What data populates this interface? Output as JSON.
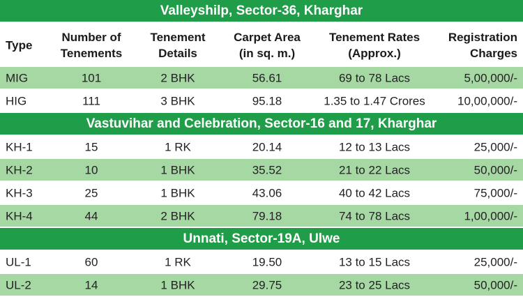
{
  "headers": [
    [
      "Type"
    ],
    [
      "Number of",
      "Tenements"
    ],
    [
      "Tenement",
      "Details"
    ],
    [
      "Carpet Area",
      "(in sq. m.)"
    ],
    [
      "Tenement Rates",
      "(Approx.)"
    ],
    [
      "Registration",
      "Charges"
    ]
  ],
  "sections": [
    {
      "title": "Valleyshilp, Sector-36, Kharghar",
      "rows": [
        [
          "MIG",
          "101",
          "2 BHK",
          "56.61",
          "69 to 78 Lacs",
          "5,00,000/-"
        ],
        [
          "HIG",
          "111",
          "3 BHK",
          "95.18",
          "1.35 to 1.47 Crores",
          "10,00,000/-"
        ]
      ]
    },
    {
      "title": "Vastuvihar and Celebration, Sector-16 and 17, Kharghar",
      "rows": [
        [
          "KH-1",
          "15",
          "1 RK",
          "20.14",
          "12 to 13 Lacs",
          "25,000/-"
        ],
        [
          "KH-2",
          "10",
          "1 BHK",
          "35.52",
          "21 to 22 Lacs",
          "50,000/-"
        ],
        [
          "KH-3",
          "25",
          "1 BHK",
          "43.06",
          "40 to 42 Lacs",
          "75,000/-"
        ],
        [
          "KH-4",
          "44",
          "2 BHK",
          "79.18",
          "74 to 78 Lacs",
          "1,00,000/-"
        ]
      ]
    },
    {
      "title": "Unnati, Sector-19A, Ulwe",
      "rows": [
        [
          "UL-1",
          "60",
          "1 RK",
          "19.50",
          "13 to 15 Lacs",
          "25,000/-"
        ],
        [
          "UL-2",
          "14",
          "1 BHK",
          "29.75",
          "23 to 25 Lacs",
          "50,000/-"
        ]
      ]
    }
  ]
}
